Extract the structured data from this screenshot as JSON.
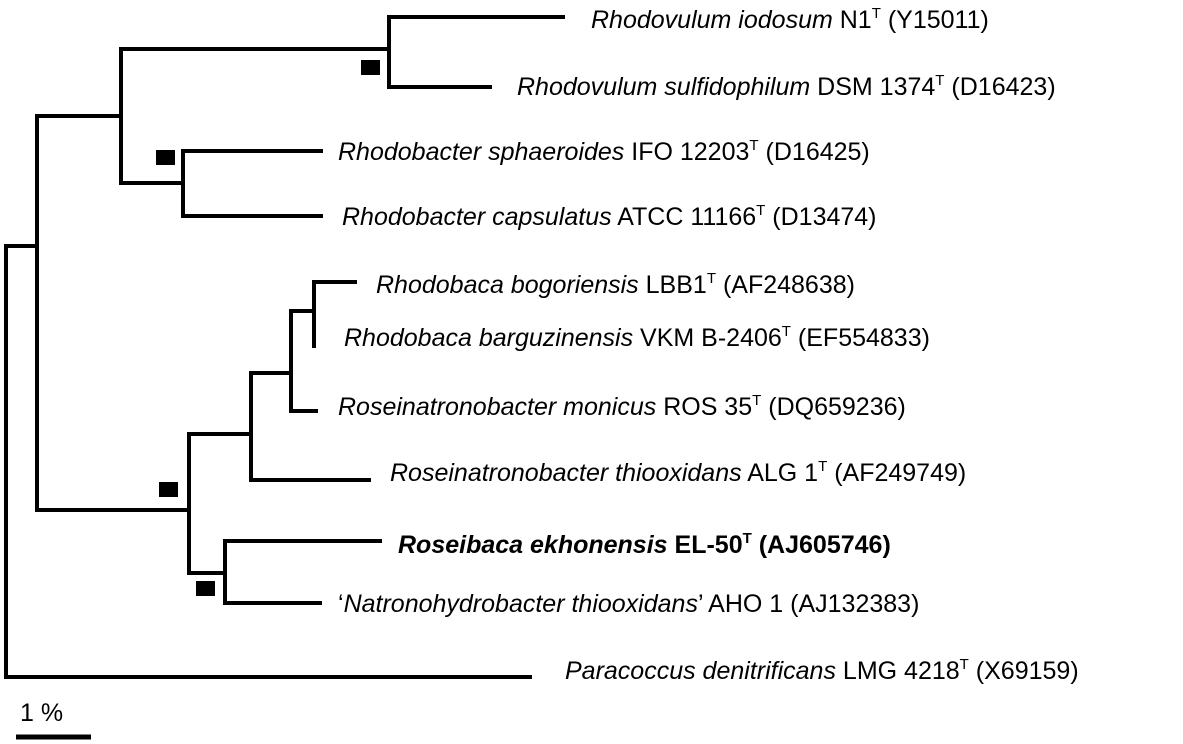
{
  "taxa": [
    {
      "id": "t1",
      "species": "Rhodovulum iodosum",
      "strain": "N1",
      "type_strain": "T",
      "accession": "(Y15011)",
      "bold": false
    },
    {
      "id": "t2",
      "species": "Rhodovulum sulfidophilum",
      "strain": "DSM 1374",
      "type_strain": "T",
      "accession": "(D16423)",
      "bold": false
    },
    {
      "id": "t3",
      "species": "Rhodobacter sphaeroides",
      "strain": "IFO 12203",
      "type_strain": "T",
      "accession": "(D16425)",
      "bold": false
    },
    {
      "id": "t4",
      "species": "Rhodobacter capsulatus",
      "strain": "ATCC 11166",
      "type_strain": "T",
      "accession": "(D13474)",
      "bold": false
    },
    {
      "id": "t5",
      "species": "Rhodobaca bogoriensis",
      "strain": "LBB1",
      "type_strain": "T",
      "accession": "(AF248638)",
      "bold": false
    },
    {
      "id": "t6",
      "species": "Rhodobaca barguzinensis",
      "strain": "VKM B-2406",
      "type_strain": "T",
      "accession": "(EF554833)",
      "bold": false
    },
    {
      "id": "t7",
      "species": "Roseinatronobacter monicus",
      "strain": "ROS 35",
      "type_strain": "T",
      "accession": "(DQ659236)",
      "bold": false
    },
    {
      "id": "t8",
      "species": "Roseinatronobacter thiooxidans",
      "strain": "ALG 1",
      "type_strain": "T",
      "accession": "(AF249749)",
      "bold": false
    },
    {
      "id": "t9",
      "species": "Roseibaca ekhonensis",
      "strain": "EL-50",
      "type_strain": "T",
      "accession": "(AJ605746)",
      "bold": true
    },
    {
      "id": "t10",
      "species": "Natronohydrobacter thiooxidans",
      "quote_open": "‘",
      "quote_close": "’",
      "strain": "AHO 1",
      "type_strain": "",
      "accession": "(AJ132383)",
      "bold": false
    },
    {
      "id": "t11",
      "species": "Paracoccus denitrificans",
      "strain": "LMG 4218",
      "type_strain": "T",
      "accession": "(X69159)",
      "bold": false
    }
  ],
  "scale_bar": {
    "label": "1 %"
  },
  "legend_marker": {
    "meaning": "node-support-marker"
  }
}
